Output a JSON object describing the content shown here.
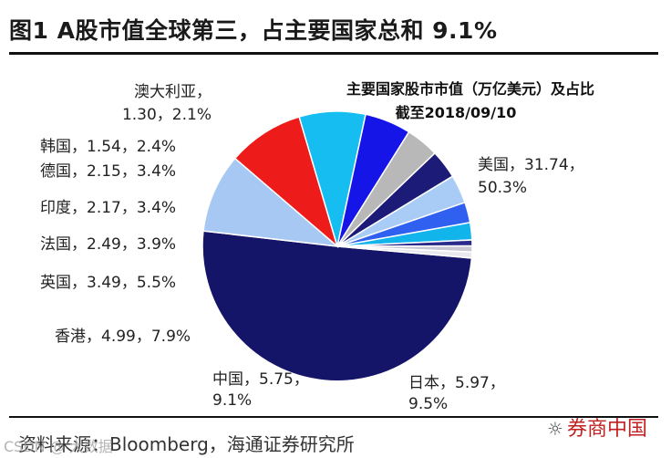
{
  "header": {
    "title": "图1 A股市值全球第三，占主要国家总和 9.1%"
  },
  "source": {
    "text": "资料来源：Bloomberg，海通证券研究所"
  },
  "watermarks": {
    "left": "CSDN @ 大数据",
    "right": "券商中国"
  },
  "chart_data": {
    "type": "pie",
    "title": "主要国家股市市值（万亿美元）及占比",
    "subtitle": "截至2018/09/10",
    "slices": [
      {
        "label": "美国",
        "value": 31.74,
        "percent": "50.3%",
        "color": "#141469",
        "text": "美国，31.74，",
        "text2": "50.3%"
      },
      {
        "label": "日本",
        "value": 5.97,
        "percent": "9.5%",
        "color": "#a8c8f4",
        "text": "日本，5.97，",
        "text2": "9.5%"
      },
      {
        "label": "中国",
        "value": 5.75,
        "percent": "9.1%",
        "color": "#ee1b1b",
        "text": "中国，5.75，",
        "text2": "9.1%"
      },
      {
        "label": "香港",
        "value": 4.99,
        "percent": "7.9%",
        "color": "#15bdf0",
        "text": "香港，4.99，7.9%"
      },
      {
        "label": "英国",
        "value": 3.49,
        "percent": "5.5%",
        "color": "#1515e8",
        "text": "英国，3.49，5.5%"
      },
      {
        "label": "法国",
        "value": 2.49,
        "percent": "3.9%",
        "color": "#b8b8b8",
        "text": "法国，2.49，3.9%"
      },
      {
        "label": "印度",
        "value": 2.17,
        "percent": "3.4%",
        "color": "#1c1c78",
        "text": "印度，2.17，3.4%"
      },
      {
        "label": "德国",
        "value": 2.15,
        "percent": "3.4%",
        "color": "#a8ccf6",
        "text": "德国，2.15，3.4%"
      },
      {
        "label": "韩国",
        "value": 1.54,
        "percent": "2.4%",
        "color": "#2f60f0",
        "text": "韩国，1.54，2.4%"
      },
      {
        "label": "澳大利亚",
        "value": 1.3,
        "percent": "2.1%",
        "color": "#12b4ec",
        "text": "澳大利亚，",
        "text2": "1.30，2.1%"
      },
      {
        "label": "",
        "value": 0.45,
        "percent": "",
        "color": "#2a2a8c"
      },
      {
        "label": "",
        "value": 0.45,
        "percent": "",
        "color": "#c8c8d4"
      },
      {
        "label": "",
        "value": 0.45,
        "percent": "",
        "color": "#e8e8ee"
      }
    ]
  }
}
